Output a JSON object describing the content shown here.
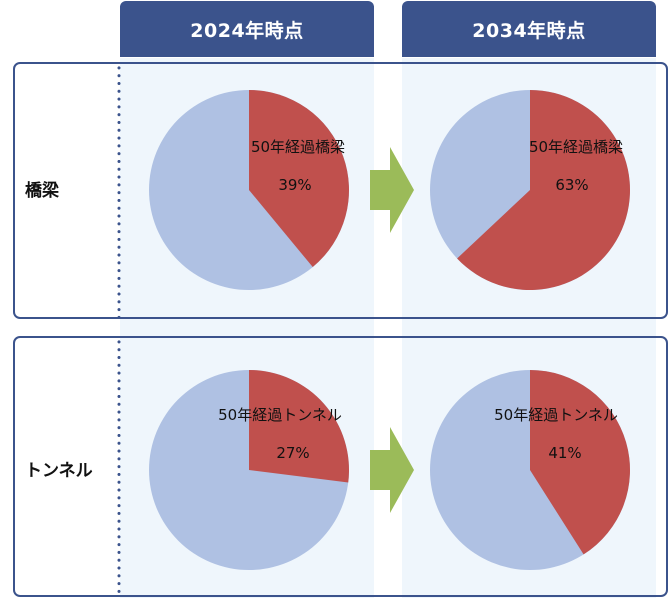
{
  "columns": [
    "2024年時点",
    "2034年時点"
  ],
  "rows": [
    "橋梁",
    "トンネル"
  ],
  "colors": {
    "header": "#3b538c",
    "slice_over50": "#c0504d",
    "slice_rest": "#afc1e3",
    "arrow": "#9bbb59",
    "column_bg": "#eff6fc"
  },
  "chart_data": [
    {
      "type": "pie",
      "row": "橋梁",
      "column": "2024年時点",
      "label": "50年経過橋梁",
      "value": 39,
      "display": "39%"
    },
    {
      "type": "pie",
      "row": "橋梁",
      "column": "2034年時点",
      "label": "50年経過橋梁",
      "value": 63,
      "display": "63%"
    },
    {
      "type": "pie",
      "row": "トンネル",
      "column": "2024年時点",
      "label": "50年経過トンネル",
      "value": 27,
      "display": "27%"
    },
    {
      "type": "pie",
      "row": "トンネル",
      "column": "2034年時点",
      "label": "50年経過トンネル",
      "value": 41,
      "display": "41%"
    }
  ]
}
